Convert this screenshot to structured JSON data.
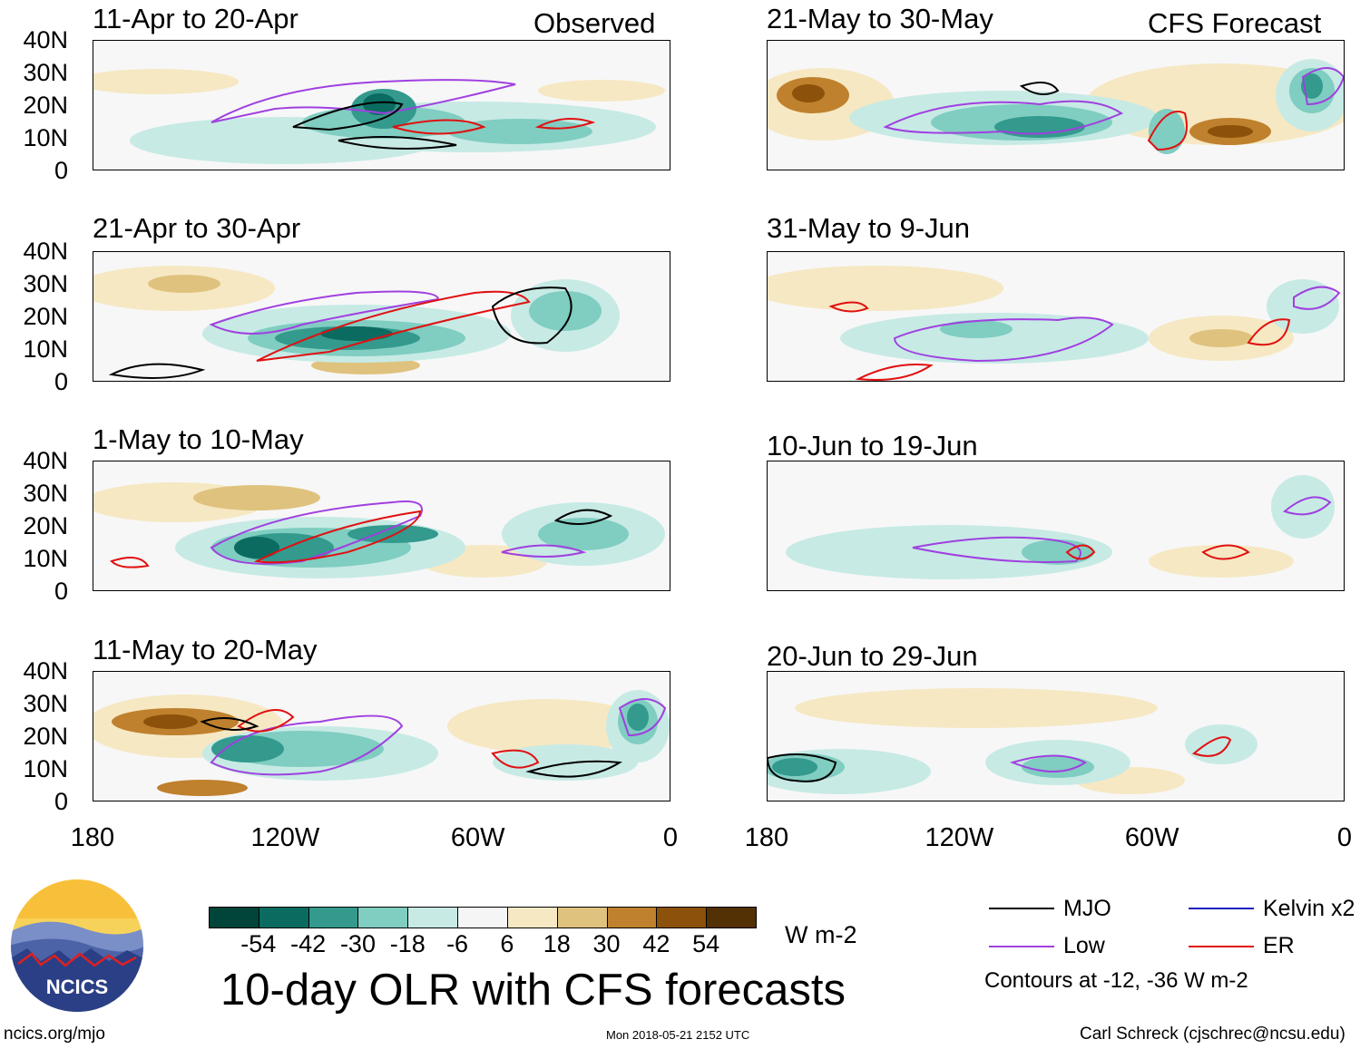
{
  "header": {
    "observed_label": "Observed",
    "forecast_label": "CFS Forecast"
  },
  "panels": [
    {
      "title": "11-Apr to 20-Apr",
      "kind": "observed"
    },
    {
      "title": "21-Apr to 30-Apr",
      "kind": "observed"
    },
    {
      "title": "1-May to 10-May",
      "kind": "observed"
    },
    {
      "title": "11-May to 20-May",
      "kind": "observed"
    },
    {
      "title": "21-May to 30-May",
      "kind": "forecast"
    },
    {
      "title": "31-May to 9-Jun",
      "kind": "forecast"
    },
    {
      "title": "10-Jun to 19-Jun",
      "kind": "forecast"
    },
    {
      "title": "20-Jun to 29-Jun",
      "kind": "forecast"
    }
  ],
  "axes": {
    "y_ticks": [
      "40N",
      "30N",
      "20N",
      "10N",
      "0"
    ],
    "x_ticks": [
      "180",
      "120W",
      "60W",
      "0"
    ]
  },
  "colorbar": {
    "colors": [
      "#00443a",
      "#0b6b60",
      "#339a8d",
      "#80cdc1",
      "#c7eae5",
      "#f5f5f5",
      "#f6e8c3",
      "#dfc27d",
      "#bf812d",
      "#8c510a",
      "#543005"
    ],
    "labels": [
      "-54",
      "-42",
      "-30",
      "-18",
      "-6",
      "6",
      "18",
      "30",
      "42",
      "54"
    ],
    "units": "W m-2"
  },
  "legend": {
    "items": [
      {
        "label": "MJO",
        "color": "#000000"
      },
      {
        "label": "Kelvin x2",
        "color": "#2020c0"
      },
      {
        "label": "Low",
        "color": "#a040e0"
      },
      {
        "label": "ER",
        "color": "#e01010"
      }
    ],
    "note": "Contours at -12, -36 W m-2"
  },
  "logo": {
    "text": "NCICS"
  },
  "footer": {
    "main_title": "10-day OLR with CFS forecasts",
    "url": "ncics.org/mjo",
    "timestamp": "Mon 2018-05-21 2152 UTC",
    "author": "Carl Schreck (cjschrec@ncsu.edu)"
  }
}
